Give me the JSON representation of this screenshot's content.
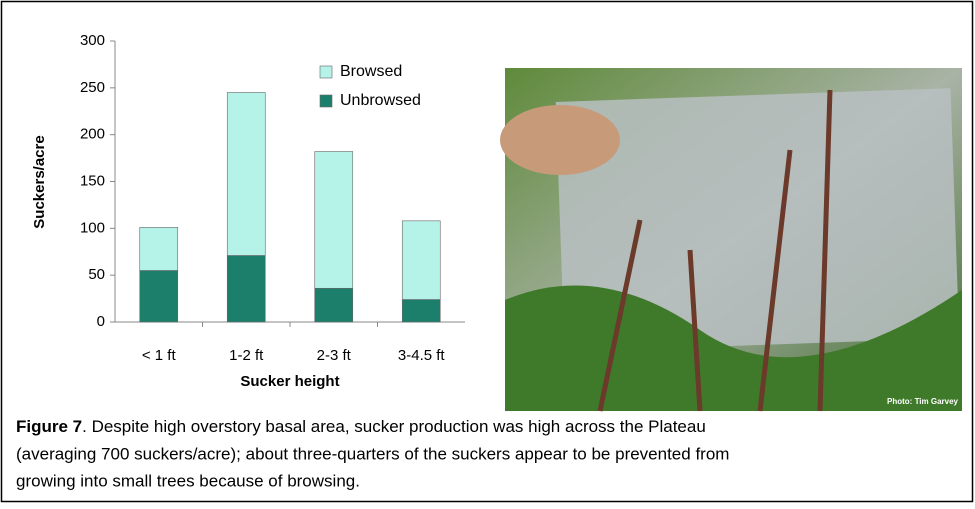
{
  "chart_data": {
    "type": "stacked-bar",
    "x_label": "Sucker height",
    "y_label": "Suckers/acre",
    "categories": [
      "< 1 ft",
      "1-2 ft",
      "2-3 ft",
      "3-4.5 ft"
    ],
    "series": [
      {
        "name": "Browsed",
        "color": "#b5f2e8",
        "values": [
          46,
          174,
          146,
          84
        ]
      },
      {
        "name": "Unbrowsed",
        "color": "#1b7f6b",
        "values": [
          55,
          71,
          36,
          24
        ]
      }
    ],
    "ylim": [
      0,
      300
    ],
    "yticks": [
      0,
      50,
      100,
      150,
      200,
      250,
      300
    ],
    "grid": false,
    "legend": "upper-right"
  },
  "photo_credit": "Photo: Tim Garvey",
  "caption": {
    "label": "Figure 7",
    "lines": [
      ".  Despite high overstory basal area, sucker production was high across the Plateau",
      "(averaging 700 suckers/acre); about three-quarters of the suckers appear to be prevented from",
      "growing into small trees because of browsing."
    ]
  }
}
